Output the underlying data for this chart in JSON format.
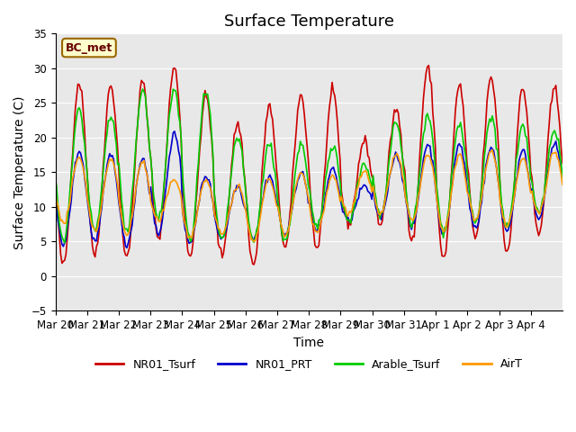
{
  "title": "Surface Temperature",
  "ylabel": "Surface Temperature (C)",
  "xlabel": "Time",
  "ylim": [
    -5,
    35
  ],
  "annotation": "BC_met",
  "series_names": [
    "NR01_Tsurf",
    "NR01_PRT",
    "Arable_Tsurf",
    "AirT"
  ],
  "series_colors": [
    "#cc0000",
    "#0000cc",
    "#00cc00",
    "#ff9900"
  ],
  "background_color": "#e8e8e8",
  "xtick_labels": [
    "Mar 20",
    "Mar 21",
    "Mar 22",
    "Mar 23",
    "Mar 24",
    "Mar 25",
    "Mar 26",
    "Mar 27",
    "Mar 28",
    "Mar 29",
    "Mar 30",
    "Mar 31",
    "Apr 1",
    "Apr 2",
    "Apr 3",
    "Apr 4"
  ],
  "ytick_values": [
    -5,
    0,
    5,
    10,
    15,
    20,
    25,
    30,
    35
  ],
  "title_fontsize": 13,
  "axis_fontsize": 10,
  "tick_fontsize": 8.5,
  "legend_fontsize": 9,
  "linewidth": 1.2,
  "nr01_peaks": [
    28,
    27.5,
    28,
    30,
    26,
    22,
    24.5,
    26,
    26.5,
    19.5,
    24,
    30,
    27.5,
    28.5,
    27,
    27
  ],
  "nr01_troughs": [
    1.5,
    3,
    2.5,
    5.5,
    3,
    3,
    1.5,
    4,
    4,
    7.5,
    7.5,
    5,
    2.5,
    5.5,
    3.5,
    6
  ],
  "prt_peaks": [
    18,
    17.5,
    17,
    20.5,
    14.5,
    13,
    14.5,
    15,
    15.5,
    13,
    17.5,
    19,
    19,
    18.5,
    18,
    19
  ],
  "prt_troughs": [
    4.5,
    5,
    4.5,
    6,
    5,
    5.5,
    5.5,
    6,
    6.5,
    8,
    8.5,
    7,
    6,
    7,
    6.5,
    8.5
  ],
  "arable_peaks": [
    24,
    23,
    27,
    27,
    26.5,
    20,
    19,
    19,
    19,
    16,
    22,
    23,
    22,
    23,
    21.5,
    21
  ],
  "arable_troughs": [
    5,
    6.5,
    6,
    8,
    5,
    5,
    5,
    5,
    7,
    8,
    8.5,
    7.5,
    6.5,
    7.5,
    7,
    9
  ],
  "airt_peaks": [
    17,
    17,
    16.5,
    14,
    14,
    13,
    14,
    15,
    14.5,
    15,
    17.5,
    17.5,
    17.5,
    18,
    17,
    18
  ],
  "airt_troughs": [
    7.5,
    6.5,
    6,
    8,
    5.5,
    6,
    5,
    6,
    6.5,
    9,
    9,
    8,
    6.5,
    8,
    7,
    9
  ]
}
